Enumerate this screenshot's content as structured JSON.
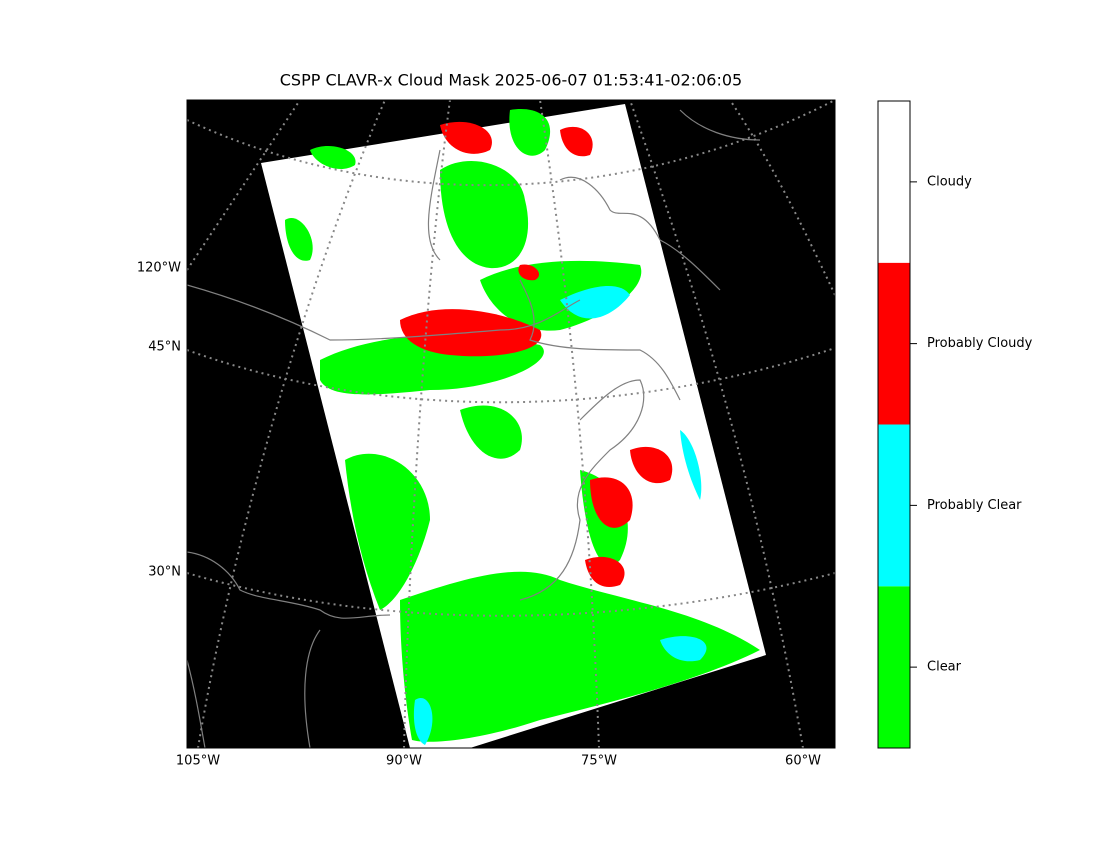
{
  "title": "CSPP CLAVR-x Cloud Mask 2025-06-07 01:53:41-02:06:05",
  "map": {
    "lon_labels": [
      "105°W",
      "90°W",
      "75°W",
      "60°W"
    ],
    "lat_labels": [
      "120°W",
      "45°N",
      "30°N"
    ]
  },
  "colorbar": {
    "classes": [
      {
        "label": "Clear",
        "color": "#00ff00"
      },
      {
        "label": "Probably Clear",
        "color": "#00ffff"
      },
      {
        "label": "Probably Cloudy",
        "color": "#ff0000"
      },
      {
        "label": "Cloudy",
        "color": "#ffffff"
      }
    ]
  }
}
